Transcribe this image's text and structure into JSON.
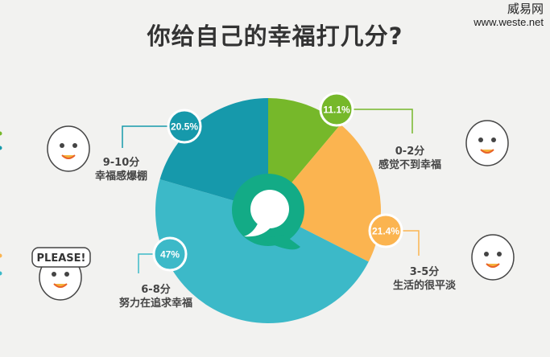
{
  "title": "你给自己的幸福打几分?",
  "watermark": {
    "name": "威易网",
    "url": "www.weste.net"
  },
  "chart_data": {
    "type": "pie",
    "title": "你给自己的幸福打几分?",
    "categories": [
      "0-2分",
      "3-5分",
      "6-8分",
      "9-10分"
    ],
    "descriptions": [
      "感觉不到幸福",
      "生活的很平淡",
      "努力在追求幸福",
      "幸福感爆棚"
    ],
    "values": [
      11.1,
      21.4,
      47,
      20.5
    ],
    "value_labels": [
      "11.1%",
      "21.4%",
      "47%",
      "20.5%"
    ],
    "colors": [
      "#76b82a",
      "#fbb450",
      "#3cb9c8",
      "#1699ab"
    ],
    "center_icon": "speech-bubble-icon",
    "center_color": "#13ab86"
  }
}
